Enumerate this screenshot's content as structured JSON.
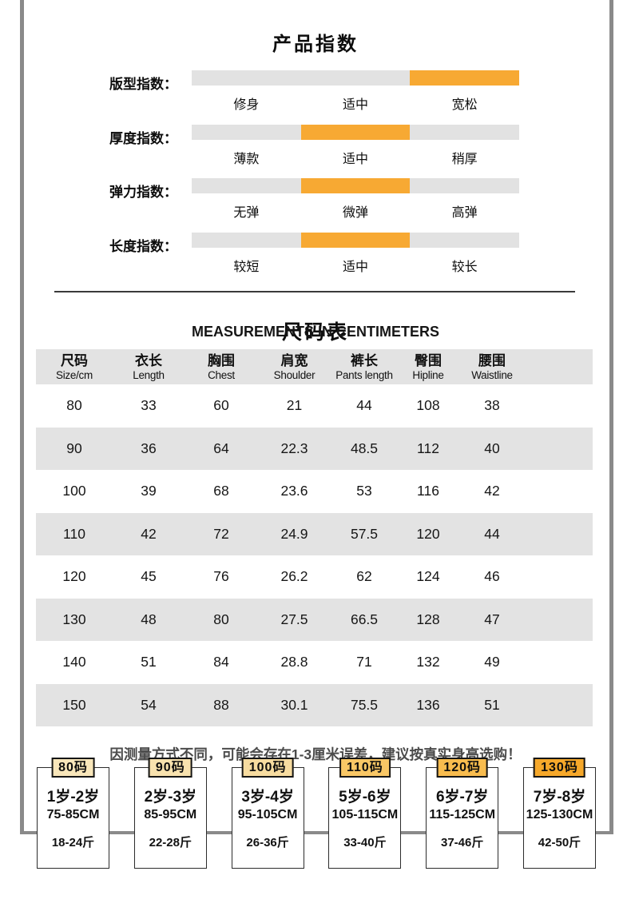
{
  "product_index": {
    "title": "产品指数",
    "track_color": "#E2E2E2",
    "active_color": "#F7A933",
    "rows": [
      {
        "label": "版型指数：",
        "options": [
          "修身",
          "适中",
          "宽松"
        ],
        "active_index": 2
      },
      {
        "label": "厚度指数：",
        "options": [
          "薄款",
          "适中",
          "稍厚"
        ],
        "active_index": 1
      },
      {
        "label": "弹力指数：",
        "options": [
          "无弹",
          "微弹",
          "高弹"
        ],
        "active_index": 1
      },
      {
        "label": "长度指数：",
        "options": [
          "较短",
          "适中",
          "较长"
        ],
        "active_index": 1
      }
    ]
  },
  "size_chart": {
    "title": "尺码表",
    "subtitle": "MEASUREMENTS IN CENTIMETERS",
    "columns": [
      {
        "zh": "尺码",
        "en": "Size/cm"
      },
      {
        "zh": "衣长",
        "en": "Length"
      },
      {
        "zh": "胸围",
        "en": "Chest"
      },
      {
        "zh": "肩宽",
        "en": "Shoulder"
      },
      {
        "zh": "裤长",
        "en": "Pants length"
      },
      {
        "zh": "臀围",
        "en": "Hipline"
      },
      {
        "zh": "腰围",
        "en": "Waistline"
      }
    ],
    "rows": [
      [
        "80",
        "33",
        "60",
        "21",
        "44",
        "108",
        "38"
      ],
      [
        "90",
        "36",
        "64",
        "22.3",
        "48.5",
        "112",
        "40"
      ],
      [
        "100",
        "39",
        "68",
        "23.6",
        "53",
        "116",
        "42"
      ],
      [
        "110",
        "42",
        "72",
        "24.9",
        "57.5",
        "120",
        "44"
      ],
      [
        "120",
        "45",
        "76",
        "26.2",
        "62",
        "124",
        "46"
      ],
      [
        "130",
        "48",
        "80",
        "27.5",
        "66.5",
        "128",
        "47"
      ],
      [
        "140",
        "51",
        "84",
        "28.8",
        "71",
        "132",
        "49"
      ],
      [
        "150",
        "54",
        "88",
        "30.1",
        "75.5",
        "136",
        "51"
      ]
    ]
  },
  "note": "因测量方式不同，可能会存在1-3厘米误差，建议按真实身高选购！",
  "size_cards": [
    {
      "badge": "80码",
      "age": "1岁-2岁",
      "height": "75-85CM",
      "weight": "18-24斤",
      "badge_color": "#F8E6BA"
    },
    {
      "badge": "90码",
      "age": "2岁-3岁",
      "height": "85-95CM",
      "weight": "22-28斤",
      "badge_color": "#F8E2AE"
    },
    {
      "badge": "100码",
      "age": "3岁-4岁",
      "height": "95-105CM",
      "weight": "26-36斤",
      "badge_color": "#F7DCA0"
    },
    {
      "badge": "110码",
      "age": "5岁-6岁",
      "height": "105-115CM",
      "weight": "33-40斤",
      "badge_color": "#F9C765"
    },
    {
      "badge": "120码",
      "age": "6岁-7岁",
      "height": "115-125CM",
      "weight": "37-46斤",
      "badge_color": "#F8BC4E"
    },
    {
      "badge": "130码",
      "age": "7岁-8岁",
      "height": "125-130CM",
      "weight": "42-50斤",
      "badge_color": "#F6A82A"
    }
  ],
  "colors": {
    "frame": "#8a8a8a",
    "table_stripe": "#E3E3E3",
    "divider": "#3a3a3a"
  }
}
